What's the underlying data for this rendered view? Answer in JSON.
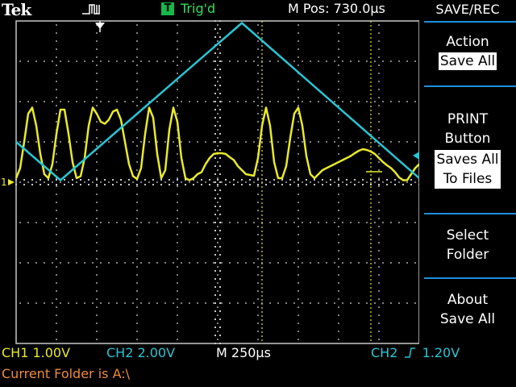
{
  "brand": "Tek",
  "trigger": {
    "badge": "T",
    "state": "Trig'd"
  },
  "horizontal_position": "M Pos: 730.0µs",
  "menu": {
    "title": "SAVE/REC",
    "items": [
      {
        "lines": [
          "Action"
        ],
        "value": "Save All"
      },
      {
        "lines": [
          "PRINT",
          "Button"
        ],
        "value_lines": [
          "Saves All",
          "To Files"
        ]
      },
      {
        "lines": [
          "Select",
          "Folder"
        ]
      },
      {
        "lines": [
          "About",
          "Save All"
        ]
      }
    ]
  },
  "status": {
    "ch1_scale": "CH1  1.00V",
    "ch2_scale": "CH2  2.00V",
    "timebase": "M 250µs",
    "trigger_source": "CH2",
    "trigger_level": "1.20V",
    "folder": "Current Folder is A:\\"
  },
  "ch1_marker": "1",
  "colors": {
    "ch1": "#e9e92a",
    "ch2": "#27c6d6",
    "grid": "#c8c8c8",
    "menu_accent": "#1c8fdc",
    "trigger_state": "#2ee05a",
    "folder_text": "#f08a38"
  },
  "chart_data": {
    "type": "line",
    "x_unit": "divisions",
    "y_unit": "divisions",
    "xlim": [
      0,
      10
    ],
    "ylim": [
      -4,
      4
    ],
    "series": [
      {
        "name": "CH2",
        "x": [
          0,
          1.1,
          5.6,
          10
        ],
        "y": [
          1.0,
          0.05,
          3.95,
          0.1
        ]
      },
      {
        "name": "CH1",
        "x": [
          0.0,
          0.1,
          0.2,
          0.3,
          0.4,
          0.5,
          0.6,
          0.7,
          0.8,
          0.9,
          1.0,
          1.1,
          1.2,
          1.3,
          1.4,
          1.5,
          1.6,
          1.7,
          1.8,
          1.9,
          2.0,
          2.1,
          2.2,
          2.3,
          2.4,
          2.5,
          2.6,
          2.7,
          2.8,
          2.9,
          3.0,
          3.1,
          3.2,
          3.3,
          3.4,
          3.5,
          3.6,
          3.7,
          3.8,
          3.9,
          4.0,
          4.1,
          4.2,
          4.3,
          4.4,
          4.5,
          4.6,
          4.7,
          4.8,
          4.9,
          5.0,
          5.1,
          5.2,
          5.3,
          5.4,
          5.5,
          5.6,
          5.7,
          5.8,
          5.9,
          6.0,
          6.1,
          6.2,
          6.3,
          6.4,
          6.5,
          6.6,
          6.7,
          6.8,
          6.9,
          7.0,
          7.1,
          7.2,
          7.3,
          7.4,
          7.5,
          7.6,
          7.7,
          7.8,
          7.9,
          8.0,
          8.1,
          8.2,
          8.3,
          8.4,
          8.5,
          8.6,
          8.7,
          8.8,
          8.9,
          9.0,
          9.1,
          9.2,
          9.3,
          9.4,
          9.5,
          9.6,
          9.7,
          9.8,
          9.9,
          10.0
        ],
        "y": [
          0.1,
          0.35,
          1.0,
          1.7,
          1.85,
          1.4,
          0.7,
          0.2,
          0.1,
          0.45,
          1.2,
          1.8,
          1.8,
          1.2,
          0.5,
          0.1,
          0.15,
          0.6,
          1.4,
          1.85,
          1.7,
          1.5,
          1.45,
          1.55,
          1.75,
          1.8,
          1.55,
          1.0,
          0.45,
          0.15,
          0.08,
          0.35,
          1.2,
          1.85,
          1.6,
          0.7,
          0.1,
          0.3,
          1.3,
          1.85,
          1.5,
          0.6,
          0.1,
          0.05,
          0.1,
          0.2,
          0.25,
          0.45,
          0.6,
          0.7,
          0.72,
          0.72,
          0.7,
          0.62,
          0.55,
          0.4,
          0.3,
          0.2,
          0.18,
          0.16,
          0.6,
          1.4,
          1.85,
          1.4,
          0.5,
          0.1,
          0.1,
          0.4,
          1.1,
          1.7,
          1.85,
          1.4,
          0.65,
          0.2,
          0.1,
          0.2,
          0.3,
          0.35,
          0.4,
          0.45,
          0.5,
          0.55,
          0.6,
          0.65,
          0.72,
          0.78,
          0.82,
          0.8,
          0.76,
          0.7,
          0.6,
          0.5,
          0.42,
          0.35,
          0.25,
          0.12,
          0.05,
          0.05,
          0.2,
          0.35,
          0.45
        ]
      }
    ]
  }
}
